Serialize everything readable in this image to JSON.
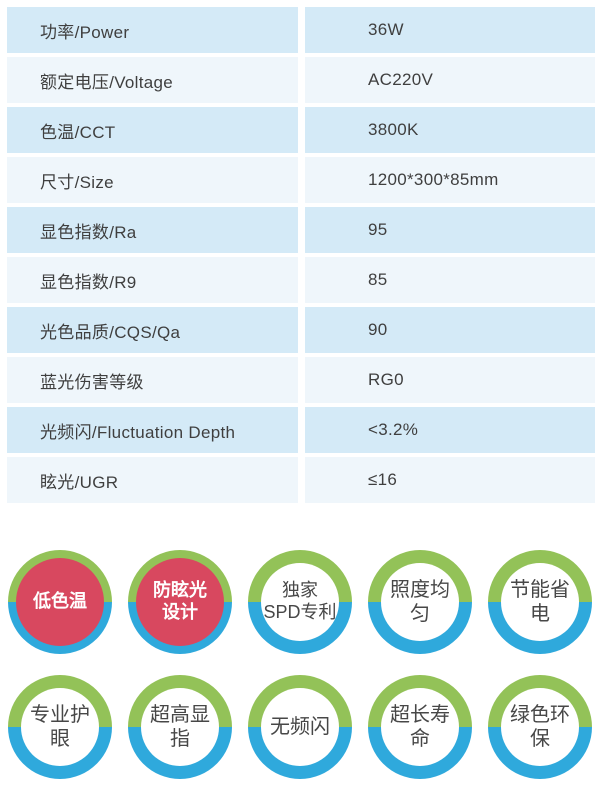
{
  "colors": {
    "row_dark": "#d4eaf7",
    "row_light": "#eff6fb",
    "table_text": "#3f3f3f",
    "ring_green": "#93c258",
    "ring_blue": "#2fa9dc",
    "badge_red": "#d8485f",
    "badge_text_white": "#ffffff",
    "badge_text_dark": "#474747"
  },
  "spec_table": {
    "rows": [
      {
        "label": "功率/Power",
        "value": "36W"
      },
      {
        "label": "额定电压/Voltage",
        "value": "AC220V"
      },
      {
        "label": "色温/CCT",
        "value": "3800K"
      },
      {
        "label": "尺寸/Size",
        "value": "1200*300*85mm"
      },
      {
        "label": "显色指数/Ra",
        "value": "95"
      },
      {
        "label": "显色指数/R9",
        "value": "85"
      },
      {
        "label": "光色品质/CQS/Qa",
        "value": "90"
      },
      {
        "label": "蓝光伤害等级",
        "value": "RG0"
      },
      {
        "label": "光频闪/Fluctuation Depth",
        "value": "<3.2%"
      },
      {
        "label": "眩光/UGR",
        "value": "≤16"
      }
    ]
  },
  "feature_badges": {
    "rows": [
      [
        {
          "label": "低色温",
          "style": "red"
        },
        {
          "label": "防眩光\n设计",
          "style": "red"
        },
        {
          "label": "独家\nSPD专利",
          "style": "white"
        },
        {
          "label": "照度均匀",
          "style": "white"
        },
        {
          "label": "节能省电",
          "style": "white"
        }
      ],
      [
        {
          "label": "专业护眼",
          "style": "white"
        },
        {
          "label": "超高显指",
          "style": "white"
        },
        {
          "label": "无频闪",
          "style": "white"
        },
        {
          "label": "超长寿命",
          "style": "white"
        },
        {
          "label": "绿色环保",
          "style": "white"
        }
      ]
    ]
  }
}
